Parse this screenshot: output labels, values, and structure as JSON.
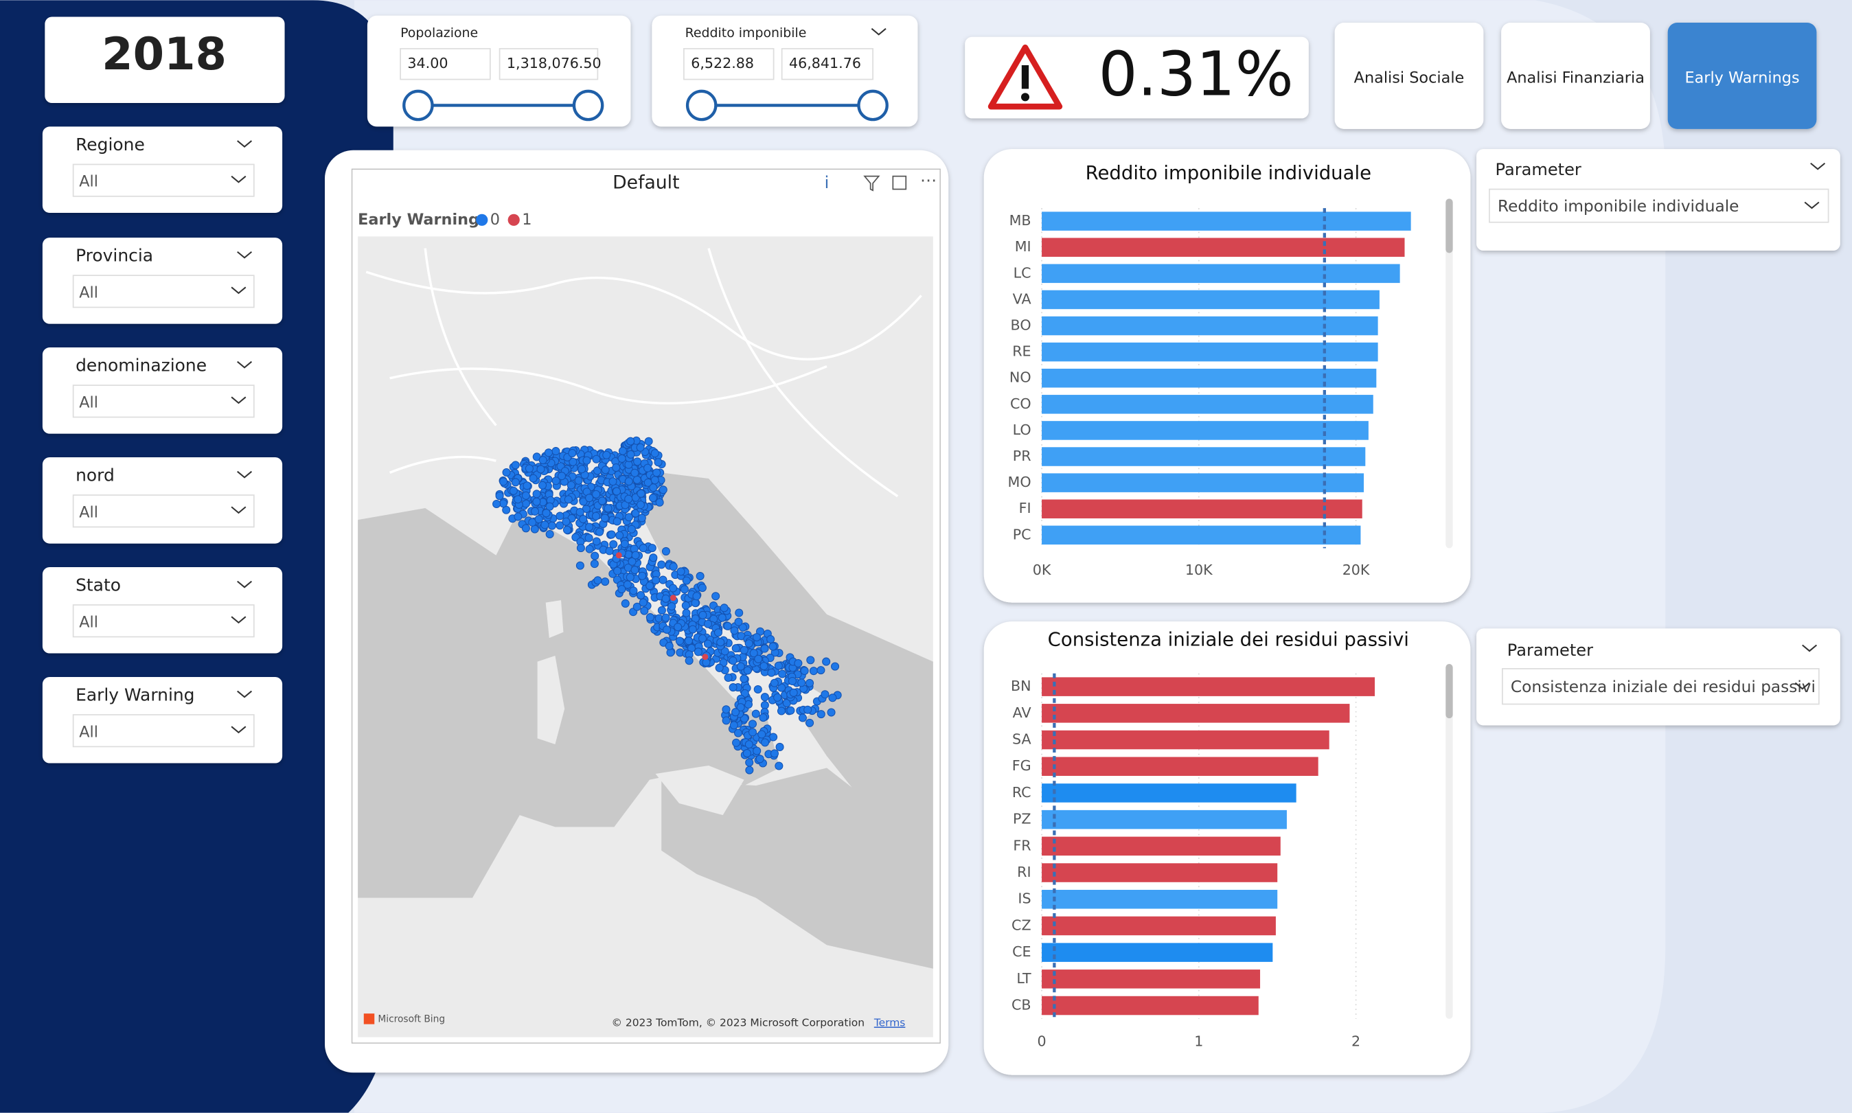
{
  "year": "2018",
  "filters": [
    {
      "label": "Regione",
      "value": "All"
    },
    {
      "label": "Provincia",
      "value": "All"
    },
    {
      "label": "denominazione",
      "value": "All"
    },
    {
      "label": "nord",
      "value": "All"
    },
    {
      "label": "Stato",
      "value": "All"
    },
    {
      "label": "Early Warning",
      "value": "All"
    }
  ],
  "sliders": [
    {
      "label": "Popolazione",
      "min": "34.00",
      "max": "1,318,076.50"
    },
    {
      "label": "Reddito imponibile",
      "min": "6,522.88",
      "max": "46,841.76"
    }
  ],
  "kpi": {
    "value": "0.31%"
  },
  "buttons": [
    "Analisi Sociale",
    "Analisi Finanziaria",
    "Early Warnings"
  ],
  "map": {
    "title": "Default",
    "info": "i",
    "legend_title": "Early Warning",
    "legend": [
      {
        "label": "0",
        "color": "#1f78e8"
      },
      {
        "label": "1",
        "color": "#d64550"
      }
    ],
    "attribution": "Microsoft Bing",
    "copyright": "© 2023 TomTom, © 2023 Microsoft Corporation",
    "terms": "Terms"
  },
  "parameters": [
    {
      "label": "Parameter",
      "value": "Reddito imponibile individuale"
    },
    {
      "label": "Parameter",
      "value": "Consistenza iniziale dei residui passivi"
    }
  ],
  "chart_data": [
    {
      "type": "bar",
      "orientation": "horizontal",
      "title": "Reddito imponibile individuale",
      "categories": [
        "MB",
        "MI",
        "LC",
        "VA",
        "BO",
        "RE",
        "NO",
        "CO",
        "LO",
        "PR",
        "MO",
        "FI",
        "PC"
      ],
      "values": [
        23500,
        23100,
        22800,
        21500,
        21400,
        21400,
        21300,
        21100,
        20800,
        20600,
        20500,
        20400,
        20300
      ],
      "colors": [
        "#3fa0f5",
        "#d64550",
        "#3fa0f5",
        "#3fa0f5",
        "#3fa0f5",
        "#3fa0f5",
        "#3fa0f5",
        "#3fa0f5",
        "#3fa0f5",
        "#3fa0f5",
        "#3fa0f5",
        "#d64550",
        "#3fa0f5"
      ],
      "xlim": [
        0,
        25000
      ],
      "xticks": [
        {
          "value": 0,
          "label": "0K"
        },
        {
          "value": 10000,
          "label": "10K"
        },
        {
          "value": 20000,
          "label": "20K"
        }
      ],
      "reference_line": 18000,
      "grid": true
    },
    {
      "type": "bar",
      "orientation": "horizontal",
      "title": "Consistenza iniziale dei residui passivi",
      "categories": [
        "BN",
        "AV",
        "SA",
        "FG",
        "RC",
        "PZ",
        "FR",
        "RI",
        "IS",
        "CZ",
        "CE",
        "LT",
        "CB"
      ],
      "values": [
        2.12,
        1.96,
        1.83,
        1.76,
        1.62,
        1.56,
        1.52,
        1.5,
        1.5,
        1.49,
        1.47,
        1.39,
        1.38
      ],
      "colors": [
        "#d64550",
        "#d64550",
        "#d64550",
        "#d64550",
        "#1e8cf0",
        "#3fa0f5",
        "#d64550",
        "#d64550",
        "#3fa0f5",
        "#d64550",
        "#1e8cf0",
        "#d64550",
        "#d64550"
      ],
      "xlim": [
        0,
        2.5
      ],
      "xticks": [
        0,
        1,
        2
      ],
      "reference_line": 0.08,
      "grid": true
    }
  ]
}
